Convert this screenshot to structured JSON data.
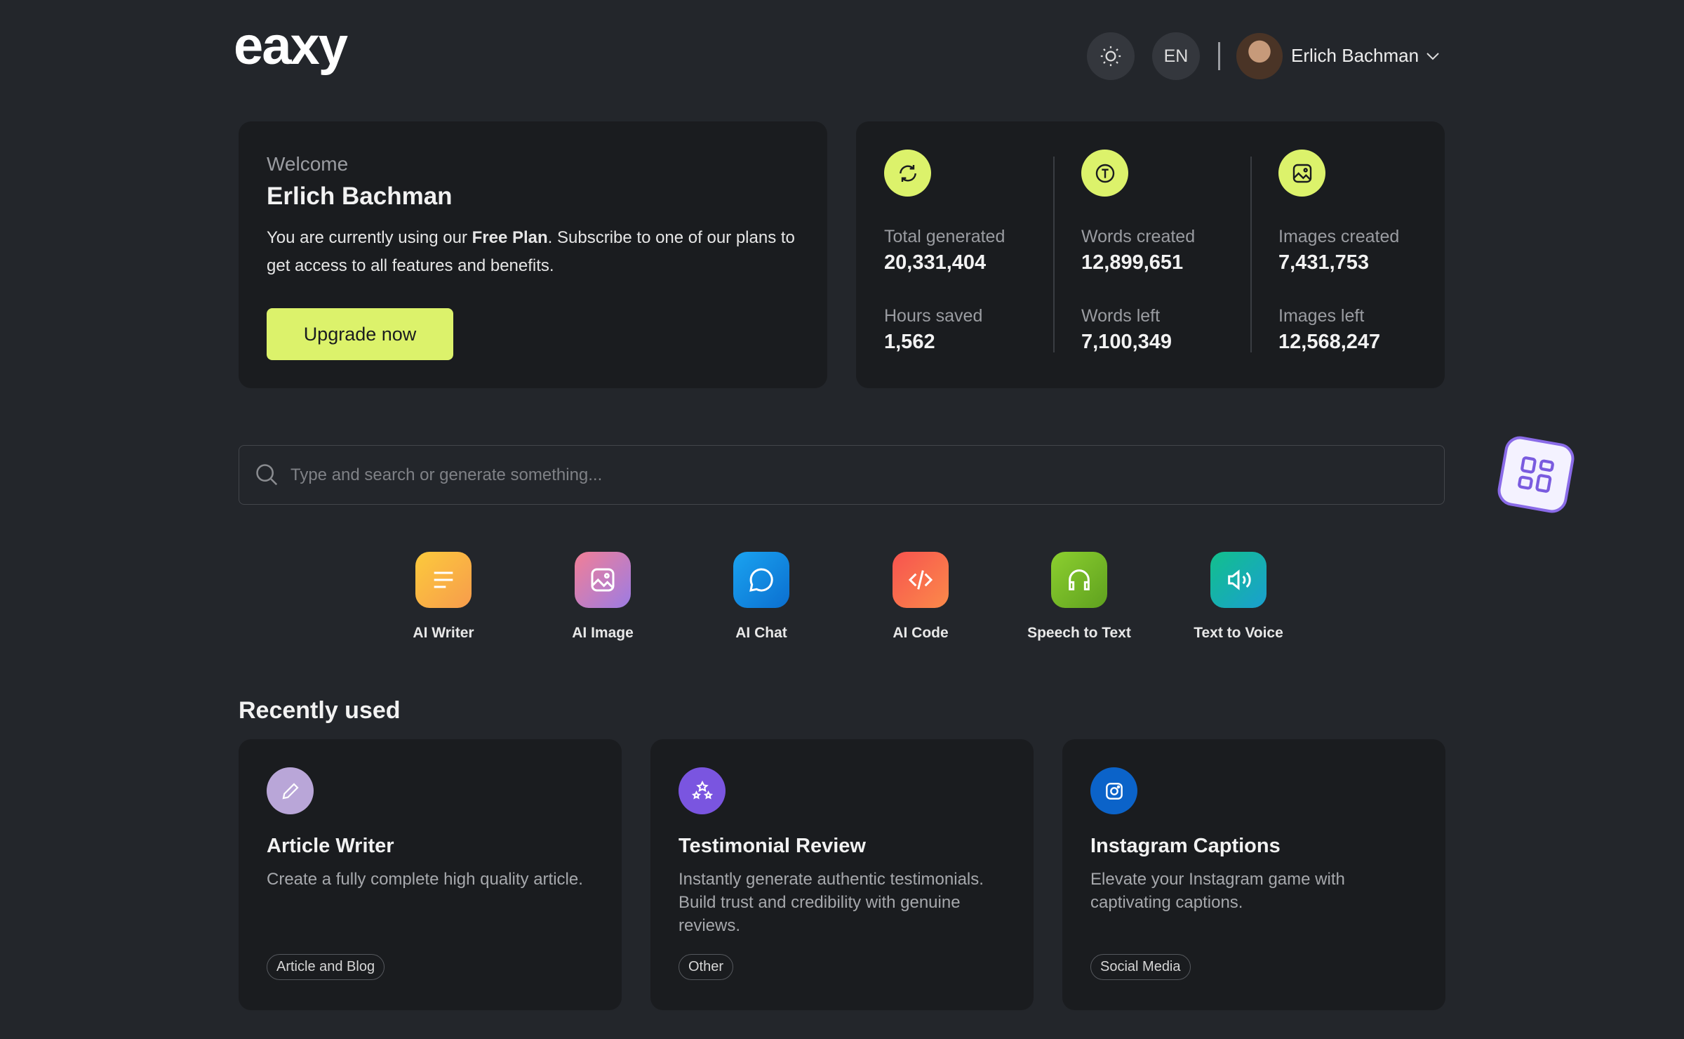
{
  "header": {
    "logo": "eaxy",
    "language": "EN",
    "user_name": "Erlich Bachman"
  },
  "welcome": {
    "greeting": "Welcome",
    "name": "Erlich Bachman",
    "message_before": "You are currently using our ",
    "plan": "Free Plan",
    "message_after": ". Subscribe to one of our plans to get access to all features and benefits.",
    "button": "Upgrade now"
  },
  "stats": [
    {
      "label": "Total generated",
      "value": "20,331,404"
    },
    {
      "label": "Hours saved",
      "value": "1,562"
    },
    {
      "label": "Words created",
      "value": "12,899,651"
    },
    {
      "label": "Words left",
      "value": "7,100,349"
    },
    {
      "label": "Images created",
      "value": "7,431,753"
    },
    {
      "label": "Images left",
      "value": "12,568,247"
    }
  ],
  "search": {
    "placeholder": "Type and search or generate something..."
  },
  "tools": [
    "AI Writer",
    "AI Image",
    "AI Chat",
    "AI Code",
    "Speech to Text",
    "Text to Voice"
  ],
  "recently_used": {
    "title": "Recently used",
    "cards": [
      {
        "title": "Article Writer",
        "description": "Create a fully complete high quality article.",
        "tag": "Article and Blog"
      },
      {
        "title": "Testimonial Review",
        "description": "Instantly generate authentic testimonials. Build trust and credibility with genuine reviews.",
        "tag": "Other"
      },
      {
        "title": "Instagram Captions",
        "description": "Elevate your Instagram game with captivating captions.",
        "tag": "Social Media"
      }
    ]
  }
}
